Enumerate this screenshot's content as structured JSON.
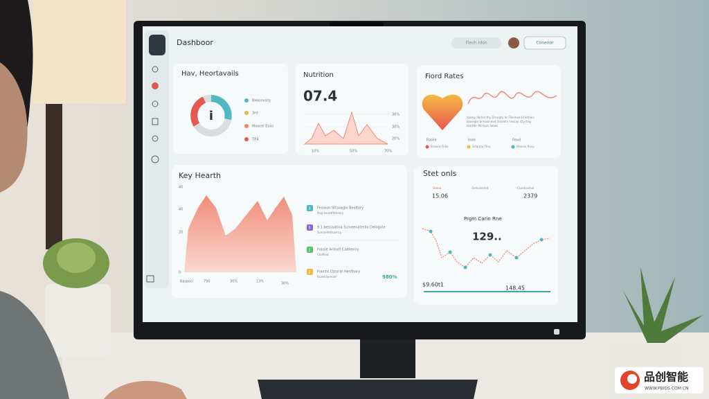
{
  "header": {
    "title": "Dashboor",
    "search": "Fleoh Idon",
    "button": "Conenor"
  },
  "heartvitals": {
    "title": "Hav, Heortavails",
    "legend": [
      "Bieionvsity",
      "3rd",
      "Moocel Eoas",
      "TR4"
    ]
  },
  "nutrition": {
    "title": "Nutrition",
    "value": "07.4",
    "right_ticks": [
      "30%",
      "30%",
      "20%"
    ],
    "bottom_ticks": [
      "10%",
      "50%",
      "70%"
    ]
  },
  "food_rates": {
    "title": "Fiord Rates",
    "lines": [
      "Ioosey dorhet thy Drssrgty hs Flecmenrid lethers",
      "Ioosegte brnsoonmet Srsolets, Ieocoy stiy-ltng",
      "Ieertthr Mcrtyos Seoes"
    ],
    "legend": [
      "Foolle",
      "Inde",
      "Feod"
    ],
    "legend_sub": [
      "Ereonis Fldie",
      "Srtarnto Tlisy",
      "Meenio Rirsy"
    ]
  },
  "key_health": {
    "title": "Key Hearth",
    "y_ticks": [
      "40",
      "40",
      "20",
      "0"
    ],
    "x_ticks": [
      "Raspoci",
      "790",
      "30%",
      "13%",
      "30%"
    ],
    "items": [
      {
        "icon": "3",
        "text": "Feoaion Sttsoaglo Beoltory",
        "sub": "Plsg bentitfhtheory"
      },
      {
        "icon": "3",
        "text": "9.1 bessaatina Scmeenaterilo Delogote",
        "sub": "Ssnoteihtbsoertiy"
      },
      {
        "icon": "2",
        "text": "Foosle Antiotf Caelienny",
        "sub": "Cbidloat"
      },
      {
        "icon": "2",
        "text": "Foonte Cbtorat Hentbory",
        "sub": "Ssaetdioreoaf"
      }
    ],
    "total": "980%"
  },
  "stats": {
    "title": "Stet onls",
    "cols": [
      {
        "label": "Greno",
        "value": "15.06"
      },
      {
        "label": "Gemosentid",
        "value": ""
      },
      {
        "label": "Csaehsemal",
        "value": "2379"
      }
    ],
    "chart_title": "Prgm Carin Rne",
    "chart_value": "129..",
    "low": "$9.60t1",
    "high": "148.45"
  },
  "watermark": {
    "brand": "品创智能",
    "url": "WWW.PBIDS.COM.CN"
  }
}
